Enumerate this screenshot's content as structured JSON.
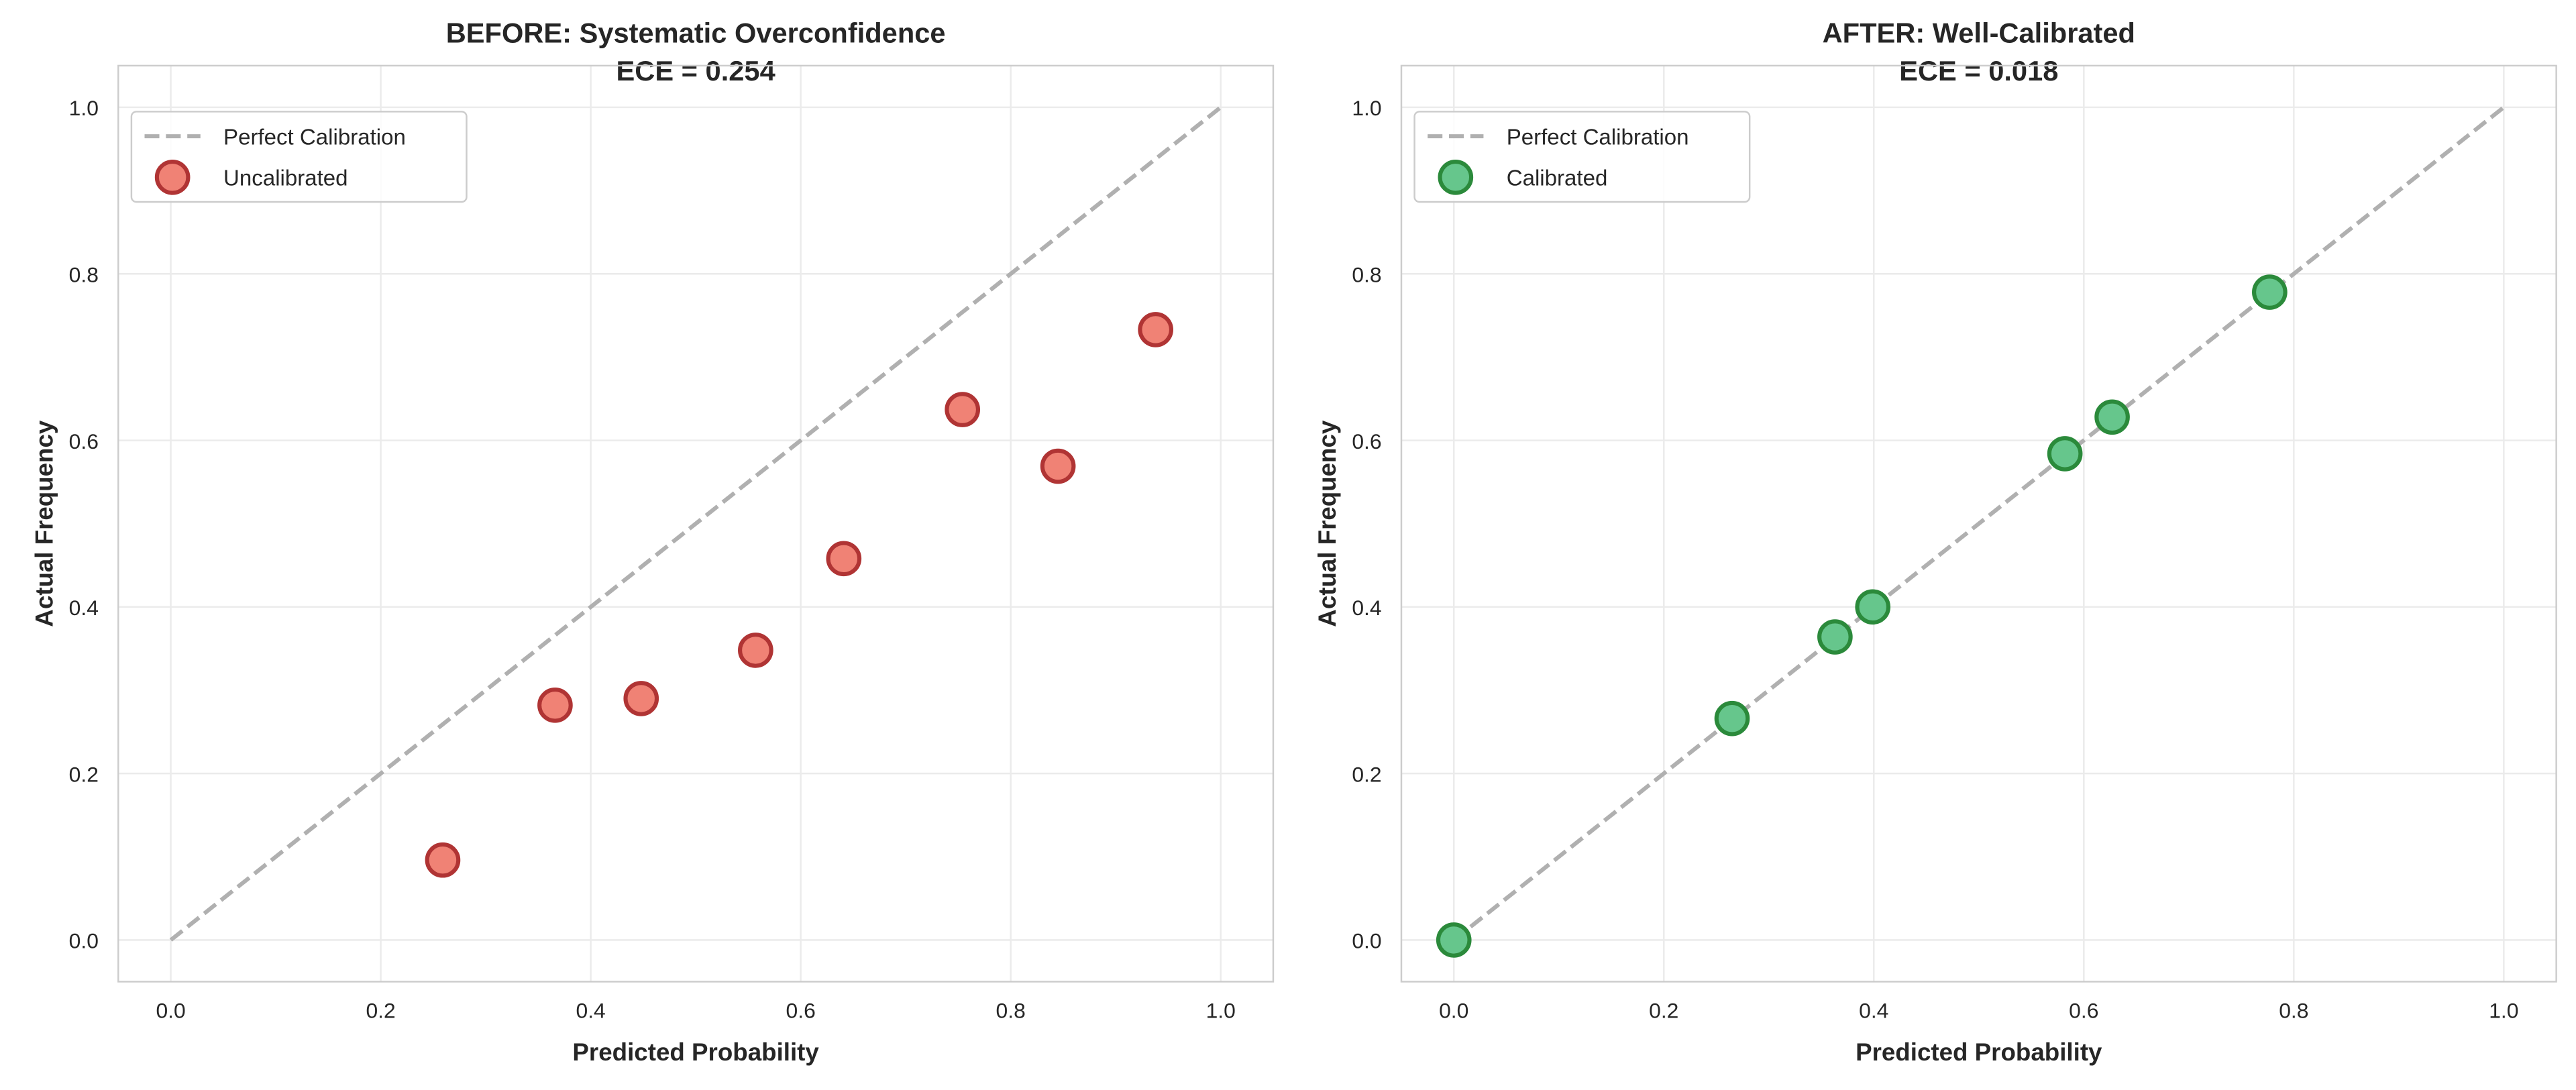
{
  "chart_data": [
    {
      "type": "scatter",
      "title": "BEFORE: Systematic Overconfidence",
      "subtitle": "ECE = 0.254",
      "xlabel": "Predicted Probability",
      "ylabel": "Actual Frequency",
      "xlim": [
        -0.05,
        1.05
      ],
      "ylim": [
        -0.05,
        1.05
      ],
      "xticks": [
        "0.0",
        "0.2",
        "0.4",
        "0.6",
        "0.8",
        "1.0"
      ],
      "yticks": [
        "0.0",
        "0.2",
        "0.4",
        "0.6",
        "0.8",
        "1.0"
      ],
      "grid": true,
      "legend_placement": "top-left",
      "reference_line": {
        "name": "Perfect Calibration",
        "x": [
          0,
          1
        ],
        "y": [
          0,
          1
        ],
        "color": "#b0b0b0",
        "style": "dashed"
      },
      "series": [
        {
          "name": "Uncalibrated",
          "fill": "#f08275",
          "edge": "#b03434",
          "x": [
            0.259,
            0.366,
            0.448,
            0.557,
            0.641,
            0.754,
            0.845,
            0.938
          ],
          "y": [
            0.096,
            0.282,
            0.29,
            0.348,
            0.458,
            0.637,
            0.569,
            0.733
          ]
        }
      ]
    },
    {
      "type": "scatter",
      "title": "AFTER: Well-Calibrated",
      "subtitle": "ECE = 0.018",
      "xlabel": "Predicted Probability",
      "ylabel": "Actual Frequency",
      "xlim": [
        -0.05,
        1.05
      ],
      "ylim": [
        -0.05,
        1.05
      ],
      "xticks": [
        "0.0",
        "0.2",
        "0.4",
        "0.6",
        "0.8",
        "1.0"
      ],
      "yticks": [
        "0.0",
        "0.2",
        "0.4",
        "0.6",
        "0.8",
        "1.0"
      ],
      "grid": true,
      "legend_placement": "top-left",
      "reference_line": {
        "name": "Perfect Calibration",
        "x": [
          0,
          1
        ],
        "y": [
          0,
          1
        ],
        "color": "#b0b0b0",
        "style": "dashed"
      },
      "series": [
        {
          "name": "Calibrated",
          "fill": "#66c68c",
          "edge": "#2b8a3b",
          "x": [
            0.0,
            0.265,
            0.363,
            0.399,
            0.582,
            0.627,
            0.777
          ],
          "y": [
            0.0,
            0.266,
            0.364,
            0.4,
            0.584,
            0.628,
            0.778
          ]
        }
      ]
    }
  ]
}
